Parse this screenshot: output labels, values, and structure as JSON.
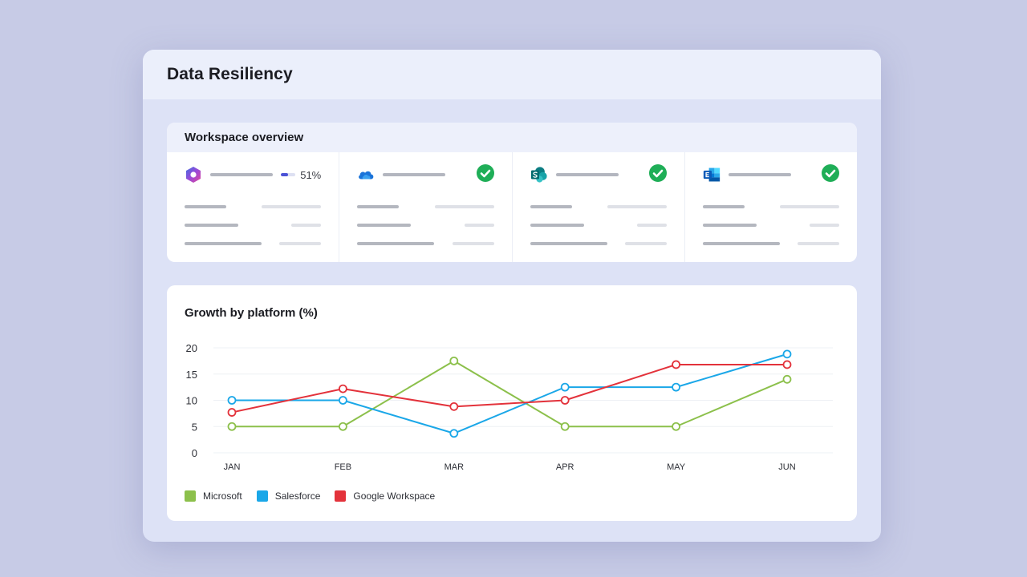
{
  "window": {
    "title": "Data Resiliency"
  },
  "overview": {
    "title": "Workspace overview",
    "workspaces": [
      {
        "icon": "microsoft-365-icon",
        "status": "progress",
        "progress_label": "51%",
        "progress": 0.51
      },
      {
        "icon": "onedrive-icon",
        "status": "ok"
      },
      {
        "icon": "sharepoint-icon",
        "status": "ok"
      },
      {
        "icon": "exchange-icon",
        "status": "ok"
      }
    ]
  },
  "colors": {
    "microsoft": "#8cc04b",
    "salesforce": "#1aa7e8",
    "google": "#e3323b",
    "check": "#1fae57",
    "progress": "#4a52d6"
  },
  "chart_data": {
    "type": "line",
    "title": "Growth by platform (%)",
    "categories": [
      "JAN",
      "FEB",
      "MAR",
      "APR",
      "MAY",
      "JUN"
    ],
    "ylim": [
      0,
      20
    ],
    "yticks": [
      0,
      5,
      10,
      15,
      20
    ],
    "grid": true,
    "legend_position": "bottom-left",
    "series": [
      {
        "name": "Microsoft",
        "color": "#8cc04b",
        "values": [
          5,
          5,
          17.5,
          5,
          5,
          14
        ]
      },
      {
        "name": "Salesforce",
        "color": "#1aa7e8",
        "values": [
          10,
          10,
          3.7,
          12.5,
          12.5,
          18.8
        ]
      },
      {
        "name": "Google Workspace",
        "color": "#e3323b",
        "values": [
          7.7,
          12.2,
          8.8,
          10,
          16.8,
          16.8
        ]
      }
    ]
  }
}
